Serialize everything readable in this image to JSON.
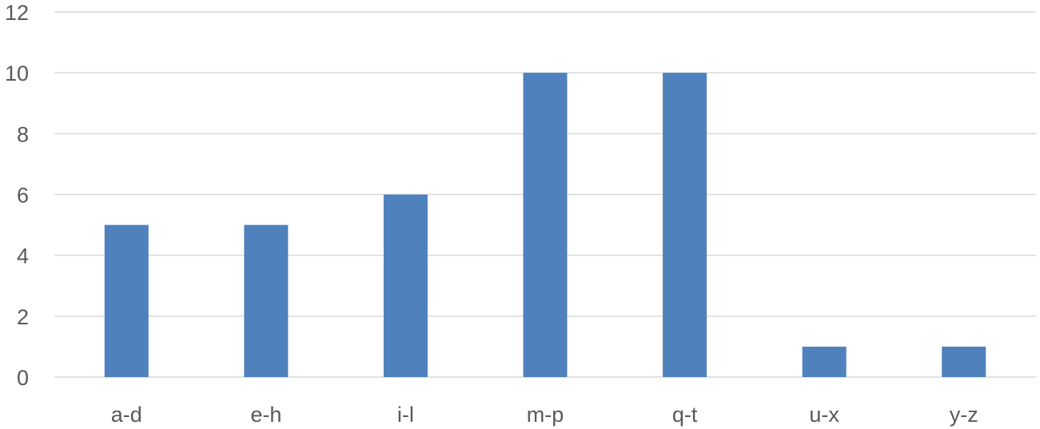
{
  "chart_data": {
    "type": "bar",
    "title": "",
    "xlabel": "",
    "ylabel": "",
    "categories": [
      "a-d",
      "e-h",
      "i-l",
      "m-p",
      "q-t",
      "u-x",
      "y-z"
    ],
    "values": [
      5,
      5,
      6,
      10,
      10,
      1,
      1
    ],
    "ylim": [
      0,
      12
    ],
    "yticks": [
      0,
      2,
      4,
      6,
      8,
      10,
      12
    ],
    "grid": true,
    "legend": "none",
    "bar_color": "#4f81bd",
    "grid_color": "#d9d9d9",
    "text_color": "#595959"
  }
}
